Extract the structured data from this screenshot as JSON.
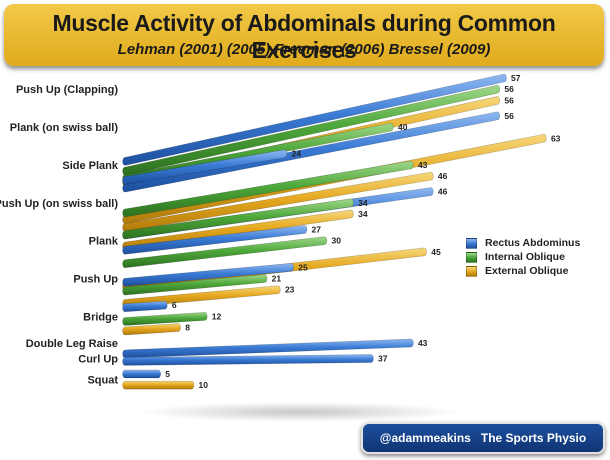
{
  "header": {
    "title": "Muscle Activity of Abdominals during Common Exercises",
    "subtitle": "Lehman (2001) (2005) Freeman (2006) Bressel (2009)"
  },
  "credit": {
    "handle": "@adammeakins",
    "name": "The Sports Physio"
  },
  "chart_data": {
    "type": "bar",
    "orientation": "horizontal",
    "title": "Muscle Activity of Abdominals during Common Exercises",
    "subtitle": "Lehman (2001) (2005) Freeman (2006) Bressel (2009)",
    "xlim": [
      0,
      65
    ],
    "grid": false,
    "legend_position": "right",
    "categories": [
      "Push Up (Clapping)",
      "Plank (on swiss ball)",
      "Side Plank",
      "Push Up (on swiss ball)",
      "Plank",
      "Push Up",
      "Bridge",
      "Double Leg Raise",
      "Curl Up",
      "Squat"
    ],
    "series": [
      {
        "name": "Rectus Abdominus",
        "color": "#3a7bd5",
        "values": [
          57,
          56,
          24,
          46,
          27,
          25,
          6,
          43,
          37,
          5
        ]
      },
      {
        "name": "Internal Oblique",
        "color": "#4ea83a",
        "values": [
          56,
          40,
          43,
          34,
          30,
          21,
          12,
          null,
          null,
          null
        ]
      },
      {
        "name": "External Oblique",
        "color": "#e6a81e",
        "values": [
          56,
          63,
          46,
          34,
          45,
          23,
          8,
          null,
          null,
          10
        ]
      }
    ]
  }
}
